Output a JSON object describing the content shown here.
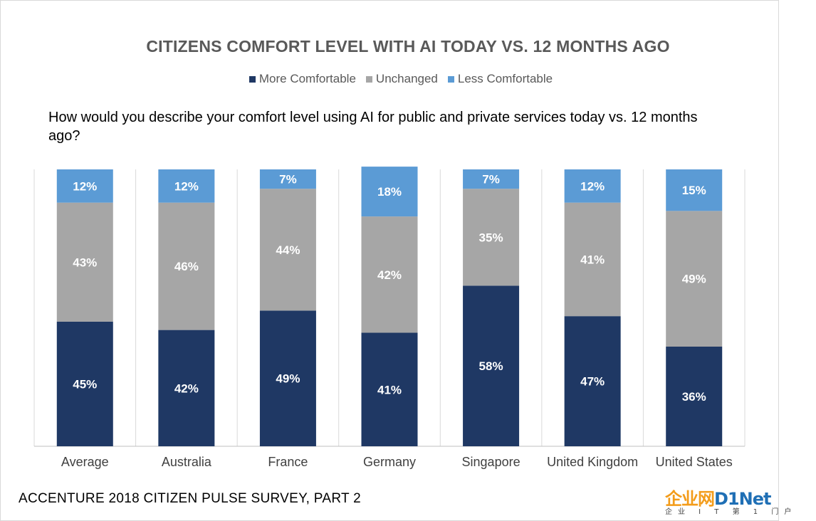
{
  "chart_data": {
    "type": "bar",
    "stacked": true,
    "title": "CITIZENS COMFORT LEVEL WITH AI TODAY VS. 12 MONTHS AGO",
    "subtitle": "How would you describe your comfort level using AI for public and private services today vs. 12 months ago?",
    "categories": [
      "Average",
      "Australia",
      "France",
      "Germany",
      "Singapore",
      "United Kingdom",
      "United States"
    ],
    "series": [
      {
        "name": "More Comfortable",
        "color": "#1f3864",
        "values": [
          45,
          42,
          49,
          41,
          58,
          47,
          36
        ]
      },
      {
        "name": "Unchanged",
        "color": "#a6a6a6",
        "values": [
          43,
          46,
          44,
          42,
          35,
          41,
          49
        ]
      },
      {
        "name": "Less Comfortable",
        "color": "#5b9bd5",
        "values": [
          12,
          12,
          7,
          18,
          7,
          12,
          15
        ]
      }
    ],
    "value_suffix": "%",
    "ylim": [
      0,
      100
    ],
    "legend_position": "top",
    "grid": false
  },
  "footer": {
    "source": "ACCENTURE 2018 CITIZEN PULSE SURVEY, PART 2"
  },
  "logo": {
    "main_a": "企业网",
    "main_b": "D1Net",
    "sub": "企业 I T 第 1 门户"
  }
}
